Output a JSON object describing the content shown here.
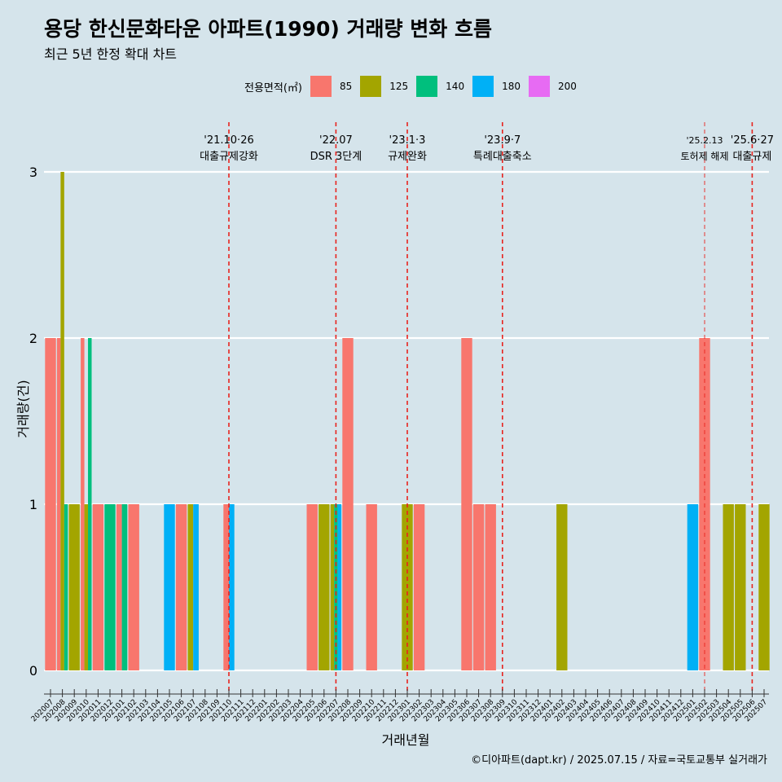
{
  "chart_data": {
    "type": "bar",
    "title": "용당 한신문화타운 아파트(1990) 거래량 변화 흐름",
    "subtitle": "최근 5년 한정 확대 차트",
    "xlabel": "거래년월",
    "ylabel": "거래량(건)",
    "ylim": [
      0,
      3
    ],
    "y_ticks": [
      "0",
      "1",
      "2",
      "3"
    ],
    "grid": true,
    "legend": {
      "title": "전용면적(㎡)",
      "placement": "top",
      "entries": [
        {
          "label": "85",
          "color": "#f8766d"
        },
        {
          "label": "125",
          "color": "#a3a500"
        },
        {
          "label": "140",
          "color": "#00bf7d"
        },
        {
          "label": "180",
          "color": "#00b0f6"
        },
        {
          "label": "200",
          "color": "#e76bf3"
        }
      ]
    },
    "categories": [
      "202007",
      "202008",
      "202009",
      "202010",
      "202011",
      "202012",
      "202101",
      "202102",
      "202103",
      "202104",
      "202105",
      "202106",
      "202107",
      "202108",
      "202109",
      "202110",
      "202111",
      "202112",
      "202201",
      "202202",
      "202203",
      "202204",
      "202205",
      "202206",
      "202207",
      "202208",
      "202209",
      "202210",
      "202211",
      "202212",
      "202301",
      "202302",
      "202303",
      "202304",
      "202305",
      "202306",
      "202307",
      "202308",
      "202309",
      "202310",
      "202311",
      "202312",
      "202401",
      "202402",
      "202403",
      "202404",
      "202405",
      "202406",
      "202407",
      "202408",
      "202409",
      "202410",
      "202411",
      "202412",
      "202501",
      "202502",
      "202503",
      "202504",
      "202505",
      "202506",
      "202507"
    ],
    "bars": [
      {
        "month": "202007",
        "series": [
          "85"
        ],
        "value": 2
      },
      {
        "month": "202008",
        "series": [
          "85",
          "125",
          "140"
        ],
        "value": 3
      },
      {
        "month": "202009",
        "series": [
          "125"
        ],
        "value": 1
      },
      {
        "month": "202010",
        "series": [
          "85",
          "125",
          "140"
        ],
        "value": 2
      },
      {
        "month": "202011",
        "series": [
          "85"
        ],
        "value": 1
      },
      {
        "month": "202012",
        "series": [
          "140"
        ],
        "value": 1
      },
      {
        "month": "202101",
        "series": [
          "85",
          "140"
        ],
        "value": 1
      },
      {
        "month": "202102",
        "series": [
          "85"
        ],
        "value": 1
      },
      {
        "month": "202105",
        "series": [
          "180"
        ],
        "value": 1
      },
      {
        "month": "202106",
        "series": [
          "85"
        ],
        "value": 1
      },
      {
        "month": "202107",
        "series": [
          "125",
          "180"
        ],
        "value": 1
      },
      {
        "month": "202110",
        "series": [
          "85",
          "180"
        ],
        "value": 1
      },
      {
        "month": "202205",
        "series": [
          "85"
        ],
        "value": 1
      },
      {
        "month": "202206",
        "series": [
          "125"
        ],
        "value": 1
      },
      {
        "month": "202207",
        "series": [
          "125",
          "140",
          "180"
        ],
        "value": 1
      },
      {
        "month": "202208",
        "series": [
          "85"
        ],
        "value": 2
      },
      {
        "month": "202210",
        "series": [
          "85"
        ],
        "value": 1
      },
      {
        "month": "202301",
        "series": [
          "125"
        ],
        "value": 1
      },
      {
        "month": "202302",
        "series": [
          "85"
        ],
        "value": 1
      },
      {
        "month": "202306",
        "series": [
          "85"
        ],
        "value": 2
      },
      {
        "month": "202307",
        "series": [
          "85"
        ],
        "value": 1
      },
      {
        "month": "202308",
        "series": [
          "85"
        ],
        "value": 1
      },
      {
        "month": "202402",
        "series": [
          "125"
        ],
        "value": 1
      },
      {
        "month": "202501",
        "series": [
          "180"
        ],
        "value": 1
      },
      {
        "month": "202502",
        "series": [
          "85"
        ],
        "value": 2
      },
      {
        "month": "202504",
        "series": [
          "125"
        ],
        "value": 1
      },
      {
        "month": "202505",
        "series": [
          "125"
        ],
        "value": 1
      },
      {
        "month": "202507",
        "series": [
          "125"
        ],
        "value": 1
      }
    ],
    "annotations": [
      {
        "month": "202110",
        "date": "'21.10·26",
        "label": "대출규제강화"
      },
      {
        "month": "202207",
        "date": "'22.07",
        "label": "DSR 3단계"
      },
      {
        "month": "202301",
        "date": "'23.1·3",
        "label": "규제완화"
      },
      {
        "month": "202309",
        "date": "'23.9·7",
        "label": "특례대출축소"
      },
      {
        "month": "202502",
        "date": "'25.2.13",
        "label": "토허제 해제"
      },
      {
        "month": "202506",
        "date": "'25.6·27",
        "label": "대출규제"
      }
    ]
  },
  "caption": "©디아파트(dapt.kr) / 2025.07.15 / 자료=국토교통부 실거래가"
}
